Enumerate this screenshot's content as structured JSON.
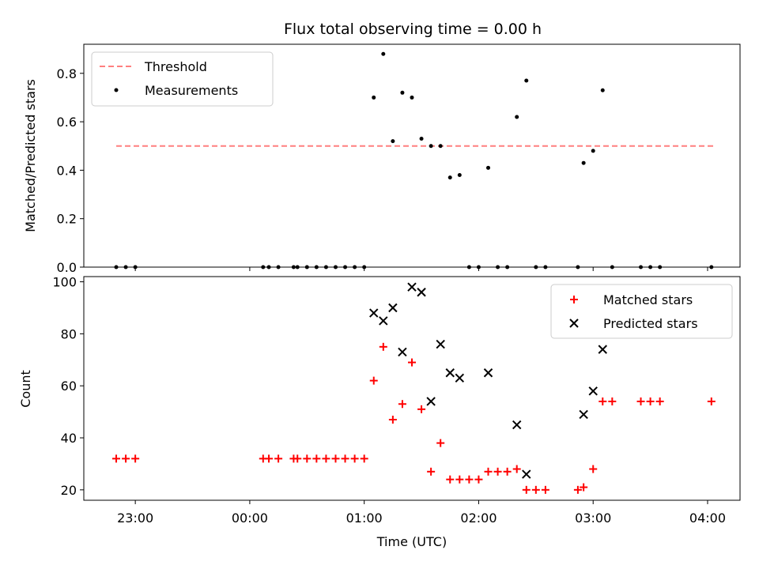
{
  "chart_data": [
    {
      "type": "scatter",
      "title": "Flux total observing time = 0.00 h",
      "xlabel": "",
      "ylabel": "Matched/Predicted stars",
      "xlim": [
        "22:33",
        "04:17"
      ],
      "ylim": [
        0,
        0.92
      ],
      "yticks": [
        0.0,
        0.2,
        0.4,
        0.6,
        0.8
      ],
      "ytick_labels": [
        "0.0",
        "0.2",
        "0.4",
        "0.6",
        "0.8"
      ],
      "legend_position": "upper-left",
      "legend": [
        "Threshold",
        "Measurements"
      ],
      "threshold": {
        "name": "Threshold",
        "y": 0.5,
        "x_start": "22:50",
        "x_end": "04:03",
        "color": "#ff7f7f",
        "style": "dashed"
      },
      "series": [
        {
          "name": "Measurements",
          "marker": "dot",
          "color": "#000000",
          "points": [
            [
              "22:50",
              0
            ],
            [
              "22:55",
              0
            ],
            [
              "23:00",
              0
            ],
            [
              "00:07",
              0
            ],
            [
              "00:10",
              0
            ],
            [
              "00:15",
              0
            ],
            [
              "00:23",
              0
            ],
            [
              "00:25",
              0
            ],
            [
              "00:30",
              0
            ],
            [
              "00:35",
              0
            ],
            [
              "00:40",
              0
            ],
            [
              "00:45",
              0
            ],
            [
              "00:50",
              0
            ],
            [
              "00:55",
              0
            ],
            [
              "01:00",
              0
            ],
            [
              "01:05",
              0.7
            ],
            [
              "01:10",
              0.88
            ],
            [
              "01:15",
              0.52
            ],
            [
              "01:20",
              0.72
            ],
            [
              "01:25",
              0.7
            ],
            [
              "01:30",
              0.53
            ],
            [
              "01:35",
              0.5
            ],
            [
              "01:40",
              0.5
            ],
            [
              "01:45",
              0.37
            ],
            [
              "01:50",
              0.38
            ],
            [
              "01:55",
              0
            ],
            [
              "02:00",
              0
            ],
            [
              "02:05",
              0.41
            ],
            [
              "02:10",
              0
            ],
            [
              "02:15",
              0
            ],
            [
              "02:20",
              0.62
            ],
            [
              "02:25",
              0.77
            ],
            [
              "02:30",
              0
            ],
            [
              "02:35",
              0
            ],
            [
              "02:52",
              0
            ],
            [
              "02:55",
              0.43
            ],
            [
              "03:00",
              0.48
            ],
            [
              "03:05",
              0.73
            ],
            [
              "03:10",
              0
            ],
            [
              "03:25",
              0
            ],
            [
              "03:30",
              0
            ],
            [
              "03:35",
              0
            ],
            [
              "04:02",
              0
            ]
          ]
        }
      ]
    },
    {
      "type": "scatter",
      "title": "",
      "xlabel": "Time (UTC)",
      "ylabel": "Count",
      "xlim": [
        "22:33",
        "04:17"
      ],
      "ylim": [
        16,
        102
      ],
      "yticks": [
        20,
        40,
        60,
        80,
        100
      ],
      "xticks": [
        "23:00",
        "00:00",
        "01:00",
        "02:00",
        "03:00",
        "04:00"
      ],
      "legend_position": "upper-right",
      "legend": [
        "Matched stars",
        "Predicted stars"
      ],
      "series": [
        {
          "name": "Matched stars",
          "marker": "plus",
          "color": "#ff0000",
          "points": [
            [
              "22:50",
              32
            ],
            [
              "22:55",
              32
            ],
            [
              "23:00",
              32
            ],
            [
              "00:07",
              32
            ],
            [
              "00:10",
              32
            ],
            [
              "00:15",
              32
            ],
            [
              "00:23",
              32
            ],
            [
              "00:25",
              32
            ],
            [
              "00:30",
              32
            ],
            [
              "00:35",
              32
            ],
            [
              "00:40",
              32
            ],
            [
              "00:45",
              32
            ],
            [
              "00:50",
              32
            ],
            [
              "00:55",
              32
            ],
            [
              "01:00",
              32
            ],
            [
              "01:05",
              62
            ],
            [
              "01:10",
              75
            ],
            [
              "01:15",
              47
            ],
            [
              "01:20",
              53
            ],
            [
              "01:25",
              69
            ],
            [
              "01:30",
              51
            ],
            [
              "01:35",
              27
            ],
            [
              "01:40",
              38
            ],
            [
              "01:45",
              24
            ],
            [
              "01:50",
              24
            ],
            [
              "01:55",
              24
            ],
            [
              "02:00",
              24
            ],
            [
              "02:05",
              27
            ],
            [
              "02:10",
              27
            ],
            [
              "02:15",
              27
            ],
            [
              "02:20",
              28
            ],
            [
              "02:25",
              20
            ],
            [
              "02:30",
              20
            ],
            [
              "02:35",
              20
            ],
            [
              "02:52",
              20
            ],
            [
              "02:55",
              21
            ],
            [
              "03:00",
              28
            ],
            [
              "03:05",
              54
            ],
            [
              "03:10",
              54
            ],
            [
              "03:25",
              54
            ],
            [
              "03:30",
              54
            ],
            [
              "03:35",
              54
            ],
            [
              "04:02",
              54
            ]
          ]
        },
        {
          "name": "Predicted stars",
          "marker": "x",
          "color": "#000000",
          "points": [
            [
              "01:05",
              88
            ],
            [
              "01:10",
              85
            ],
            [
              "01:15",
              90
            ],
            [
              "01:20",
              73
            ],
            [
              "01:25",
              98
            ],
            [
              "01:30",
              96
            ],
            [
              "01:35",
              54
            ],
            [
              "01:40",
              76
            ],
            [
              "01:45",
              65
            ],
            [
              "01:50",
              63
            ],
            [
              "02:05",
              65
            ],
            [
              "02:20",
              45
            ],
            [
              "02:25",
              26
            ],
            [
              "02:55",
              49
            ],
            [
              "03:00",
              58
            ],
            [
              "03:05",
              74
            ]
          ]
        }
      ]
    }
  ]
}
